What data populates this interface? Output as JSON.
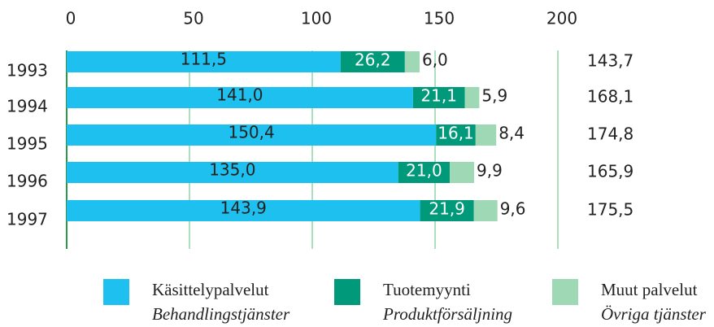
{
  "chart_data": {
    "type": "stacked_bar_horizontal",
    "categories": [
      "1993",
      "1994",
      "1995",
      "1996",
      "1997"
    ],
    "series": [
      {
        "name": "Käsittelypalvelut",
        "subname": "Behandlingstjänster",
        "color": "#1ec0ef",
        "values": [
          111.5,
          141.0,
          150.4,
          135.0,
          143.9
        ],
        "value_labels": [
          "111,5",
          "141,0",
          "150,4",
          "135,0",
          "143,9"
        ]
      },
      {
        "name": "Tuotemyynti",
        "subname": "Produktförsäljning",
        "color": "#009a7a",
        "values": [
          26.2,
          21.1,
          16.1,
          21.0,
          21.9
        ],
        "value_labels": [
          "26,2",
          "21,1",
          "16,1",
          "21,0",
          "21,9"
        ]
      },
      {
        "name": "Muut palvelut",
        "subname": "Övriga tjänster",
        "color": "#9fd8b4",
        "values": [
          6.0,
          5.9,
          8.4,
          9.9,
          9.6
        ],
        "value_labels": [
          "6,0",
          "5,9",
          "8,4",
          "9,9",
          "9,6"
        ]
      }
    ],
    "totals": {
      "values": [
        143.7,
        168.1,
        174.8,
        165.9,
        175.5
      ],
      "value_labels": [
        "143,7",
        "168,1",
        "174,8",
        "165,9",
        "175,5"
      ]
    },
    "xlim": [
      0,
      200
    ],
    "xticks": [
      0,
      50,
      100,
      150,
      200
    ],
    "grid": true
  }
}
